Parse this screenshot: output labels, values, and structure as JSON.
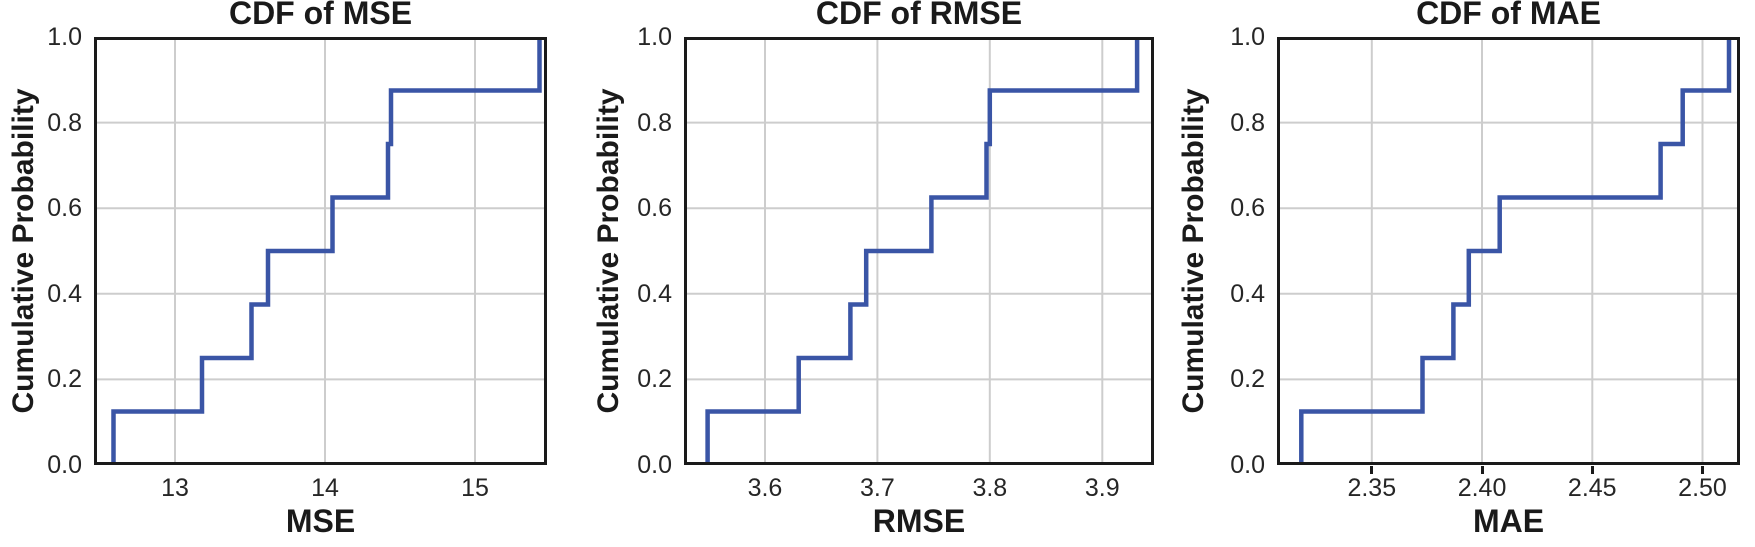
{
  "figure": {
    "background": "#ffffff",
    "grid_color": "#cdcdcd",
    "spine_color": "#1a1a1a",
    "text_color": "#1a1a1a",
    "tick_label_color": "#262626",
    "line_color": "#3a55a6"
  },
  "chart_data": [
    {
      "type": "line",
      "subtype": "empirical-cdf-step",
      "title": "CDF of MSE",
      "xlabel": "MSE",
      "ylabel": "Cumulative Probability",
      "n_samples": 8,
      "x_values": [
        12.59,
        13.18,
        13.51,
        13.62,
        14.05,
        14.42,
        14.44,
        15.43
      ],
      "cdf_probabilities": [
        0.125,
        0.25,
        0.375,
        0.5,
        0.625,
        0.75,
        0.875,
        1.0
      ],
      "xlim": [
        12.46,
        15.48
      ],
      "ylim": [
        0,
        1
      ],
      "xticks": [
        13,
        14,
        15
      ],
      "xtick_labels": [
        "13",
        "14",
        "15"
      ],
      "yticks": [
        0,
        0.2,
        0.4,
        0.6,
        0.8,
        1.0
      ],
      "ytick_labels": [
        "0.0",
        "0.2",
        "0.4",
        "0.6",
        "0.8",
        "1.0"
      ],
      "grid": true,
      "legend": false,
      "x_tick_marks": false,
      "line_color": "#3a55a6"
    },
    {
      "type": "line",
      "subtype": "empirical-cdf-step",
      "title": "CDF of RMSE",
      "xlabel": "RMSE",
      "ylabel": "Cumulative Probability",
      "n_samples": 8,
      "x_values": [
        3.549,
        3.63,
        3.676,
        3.69,
        3.748,
        3.797,
        3.8,
        3.931
      ],
      "cdf_probabilities": [
        0.125,
        0.25,
        0.375,
        0.5,
        0.625,
        0.75,
        0.875,
        1.0
      ],
      "xlim": [
        3.528,
        3.946
      ],
      "ylim": [
        0,
        1
      ],
      "xticks": [
        3.6,
        3.7,
        3.8,
        3.9
      ],
      "xtick_labels": [
        "3.6",
        "3.7",
        "3.8",
        "3.9"
      ],
      "yticks": [
        0,
        0.2,
        0.4,
        0.6,
        0.8,
        1.0
      ],
      "ytick_labels": [
        "0.0",
        "0.2",
        "0.4",
        "0.6",
        "0.8",
        "1.0"
      ],
      "grid": true,
      "legend": false,
      "x_tick_marks": false,
      "line_color": "#3a55a6"
    },
    {
      "type": "line",
      "subtype": "empirical-cdf-step",
      "title": "CDF of MAE",
      "xlabel": "MAE",
      "ylabel": "Cumulative Probability",
      "n_samples": 8,
      "x_values": [
        2.318,
        2.373,
        2.387,
        2.394,
        2.408,
        2.481,
        2.491,
        2.512
      ],
      "cdf_probabilities": [
        0.125,
        0.25,
        0.375,
        0.5,
        0.625,
        0.75,
        0.875,
        1.0
      ],
      "xlim": [
        2.307,
        2.517
      ],
      "ylim": [
        0,
        1
      ],
      "xticks": [
        2.35,
        2.4,
        2.45,
        2.5
      ],
      "xtick_labels": [
        "2.35",
        "2.40",
        "2.45",
        "2.50"
      ],
      "yticks": [
        0,
        0.2,
        0.4,
        0.6,
        0.8,
        1.0
      ],
      "ytick_labels": [
        "0.0",
        "0.2",
        "0.4",
        "0.6",
        "0.8",
        "1.0"
      ],
      "grid": true,
      "legend": false,
      "x_tick_marks": true,
      "line_color": "#3a55a6"
    }
  ]
}
